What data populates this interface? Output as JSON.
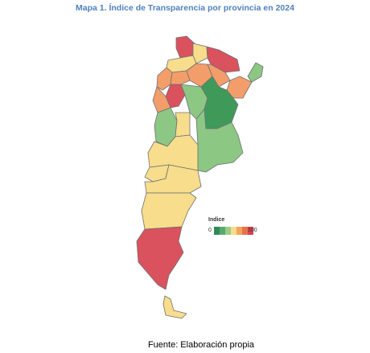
{
  "title": "Mapa 1. Índice de Transparencia por provincia en 2024",
  "source": "Fuente: Elaboración propia",
  "legend": {
    "title": "Indice",
    "min_label": "0",
    "max_label": "100",
    "colors": [
      "#2e8b57",
      "#5aa86e",
      "#9ccc8a",
      "#f5dd8a",
      "#f4a460",
      "#e8734a",
      "#d9414e"
    ]
  },
  "palette": {
    "dark_green": "#3f9a5a",
    "green": "#8cc784",
    "yellow": "#f7dd8c",
    "orange": "#f39e6a",
    "red": "#d9525e",
    "border": "#707070"
  }
}
